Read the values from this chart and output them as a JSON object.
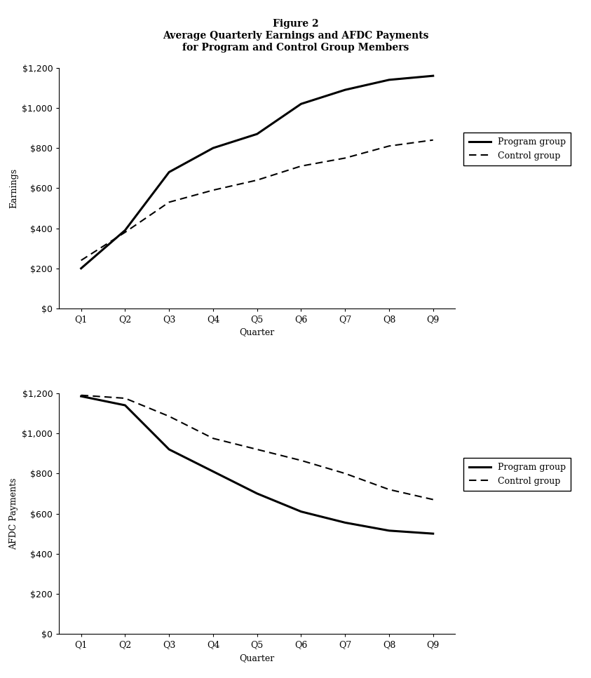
{
  "figure_title": "Figure 2",
  "subtitle_line1": "Average Quarterly Earnings and AFDC Payments",
  "subtitle_line2": "for Program and Control Group Members",
  "quarters": [
    "Q1",
    "Q2",
    "Q3",
    "Q4",
    "Q5",
    "Q6",
    "Q7",
    "Q8",
    "Q9"
  ],
  "earnings_program": [
    200,
    390,
    680,
    800,
    870,
    1020,
    1090,
    1140,
    1160
  ],
  "earnings_control": [
    240,
    380,
    530,
    590,
    640,
    710,
    750,
    810,
    840
  ],
  "afdc_program": [
    1185,
    1140,
    920,
    810,
    700,
    610,
    555,
    515,
    500
  ],
  "afdc_control": [
    1190,
    1175,
    1085,
    975,
    920,
    865,
    800,
    720,
    670
  ],
  "earnings_ylabel": "Earnings",
  "afdc_ylabel": "AFDC Payments",
  "xlabel": "Quarter",
  "legend_program": "Program group",
  "legend_control": "Control group",
  "ylim": [
    0,
    1200
  ],
  "yticks": [
    0,
    200,
    400,
    600,
    800,
    1000,
    1200
  ],
  "line_color": "#000000",
  "bg_color": "#ffffff",
  "title_fontsize": 10,
  "label_fontsize": 9,
  "tick_fontsize": 9
}
